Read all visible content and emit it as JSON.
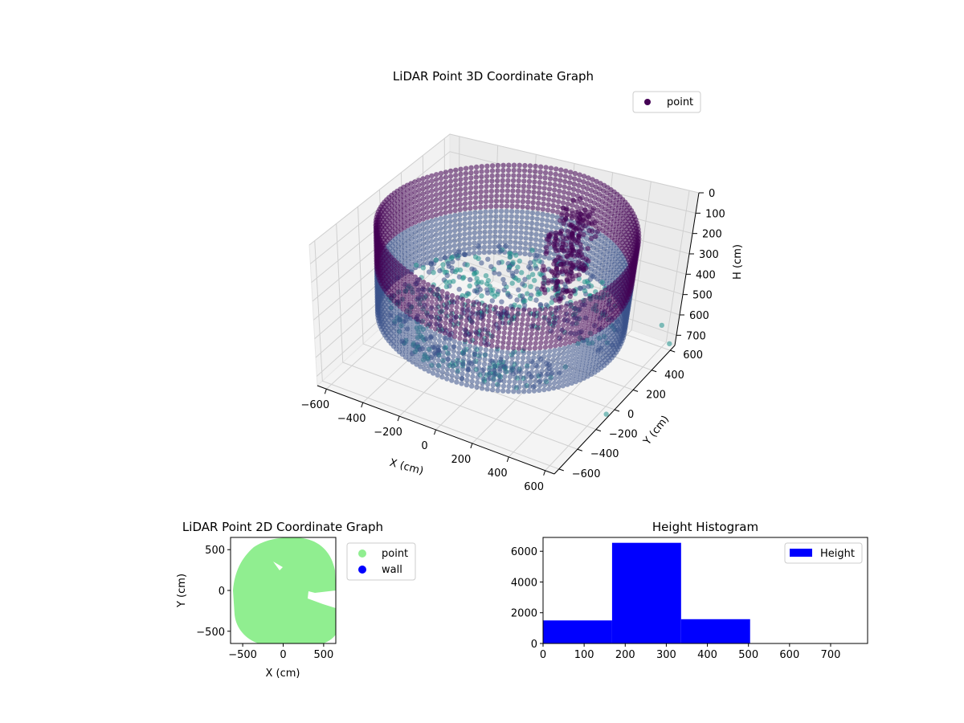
{
  "chart_data": [
    {
      "type": "scatter3d",
      "title": "LiDAR Point 3D Coordinate Graph",
      "xlabel": "X (cm)",
      "ylabel": "Y (cm)",
      "zlabel": "H (cm)",
      "xlim": [
        -650,
        650
      ],
      "ylim": [
        -650,
        650
      ],
      "zlim": [
        0,
        750
      ],
      "z_inverted": true,
      "x_ticks": [
        -600,
        -400,
        -200,
        0,
        200,
        400,
        600
      ],
      "y_ticks": [
        -600,
        -400,
        -200,
        0,
        200,
        400,
        600
      ],
      "z_ticks": [
        0,
        100,
        200,
        300,
        400,
        500,
        600,
        700
      ],
      "legend": {
        "placement": "top-right",
        "entries": [
          {
            "name": "point",
            "color": "#440154"
          }
        ]
      },
      "shape": "circular wall of radius ~600 cm, heights ~0-500 cm, dense interior floor points",
      "color_map": [
        "#440154",
        "#3b528b",
        "#21918c"
      ],
      "outliers": [
        {
          "x": 600,
          "y": 560,
          "h": 620
        },
        {
          "x": 640,
          "y": 600,
          "h": 720
        },
        {
          "x": 650,
          "y": -100,
          "h": 720
        }
      ]
    },
    {
      "type": "scatter",
      "title": "LiDAR Point 2D Coordinate Graph",
      "xlabel": "X (cm)",
      "ylabel": "Y (cm)",
      "xlim": [
        -650,
        650
      ],
      "ylim": [
        -650,
        650
      ],
      "x_ticks": [
        -500,
        0,
        500
      ],
      "y_ticks": [
        -500,
        0,
        500
      ],
      "series": [
        {
          "name": "point",
          "color": "#90ee90"
        },
        {
          "name": "wall",
          "color": "#0000ff"
        }
      ],
      "legend": {
        "placement": "outside-right"
      }
    },
    {
      "type": "bar",
      "title": "Height Histogram",
      "xlim": [
        0,
        790
      ],
      "ylim": [
        0,
        6900
      ],
      "x_ticks": [
        0,
        100,
        200,
        300,
        400,
        500,
        600,
        700
      ],
      "y_ticks": [
        0,
        2000,
        4000,
        6000
      ],
      "bins": [
        {
          "start": 0,
          "end": 168,
          "count": 1500
        },
        {
          "start": 168,
          "end": 336,
          "count": 6550
        },
        {
          "start": 336,
          "end": 504,
          "count": 1580
        },
        {
          "start": 504,
          "end": 672,
          "count": 0
        },
        {
          "start": 672,
          "end": 790,
          "count": 0
        }
      ],
      "series": [
        {
          "name": "Height",
          "color": "#0000ff"
        }
      ],
      "legend": {
        "placement": "top-right"
      }
    }
  ]
}
